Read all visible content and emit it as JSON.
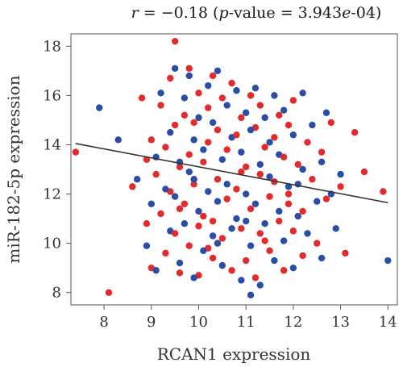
{
  "chart_data": {
    "type": "scatter",
    "title": {
      "r_symbol": "r",
      "r_value": " = −0.18 (",
      "p_symbol": "p",
      "p_label": "-value = 3.943",
      "p_e": "e",
      "p_exp": "-04)"
    },
    "xlabel": "RCAN1 expression",
    "ylabel": "miR-182-5p expression",
    "xlim": [
      7.3,
      14.2
    ],
    "ylim": [
      7.5,
      18.5
    ],
    "xticks": [
      8,
      9,
      10,
      11,
      12,
      13,
      14
    ],
    "yticks": [
      8,
      10,
      12,
      14,
      16,
      18
    ],
    "xtick_labels": [
      "8",
      "9",
      "10",
      "11",
      "12",
      "13",
      "14"
    ],
    "ytick_labels": [
      "8",
      "10",
      "12",
      "14",
      "16",
      "18"
    ],
    "grid": false,
    "legend": "none",
    "colors": {
      "red": "#e32b2e",
      "blue": "#2a4ea6",
      "line": "#333333"
    },
    "regression_line": {
      "x": [
        7.4,
        14.0
      ],
      "y": [
        14.05,
        11.65
      ]
    },
    "series": [
      {
        "color": "red",
        "points": [
          [
            7.4,
            13.7
          ],
          [
            8.1,
            8.0
          ],
          [
            8.6,
            12.3
          ],
          [
            8.8,
            15.9
          ],
          [
            8.9,
            13.4
          ],
          [
            8.9,
            10.8
          ],
          [
            9.0,
            14.2
          ],
          [
            9.0,
            9.0
          ],
          [
            9.1,
            12.8
          ],
          [
            9.2,
            15.6
          ],
          [
            9.2,
            11.2
          ],
          [
            9.3,
            13.9
          ],
          [
            9.3,
            9.6
          ],
          [
            9.4,
            16.7
          ],
          [
            9.4,
            12.1
          ],
          [
            9.5,
            18.2
          ],
          [
            9.5,
            14.8
          ],
          [
            9.5,
            10.4
          ],
          [
            9.6,
            13.1
          ],
          [
            9.6,
            8.8
          ],
          [
            9.7,
            15.2
          ],
          [
            9.7,
            11.6
          ],
          [
            9.8,
            17.1
          ],
          [
            9.8,
            13.6
          ],
          [
            9.8,
            9.9
          ],
          [
            9.9,
            14.9
          ],
          [
            9.9,
            12.4
          ],
          [
            10.0,
            16.1
          ],
          [
            10.0,
            10.7
          ],
          [
            10.0,
            8.7
          ],
          [
            10.1,
            13.3
          ],
          [
            10.1,
            11.1
          ],
          [
            10.2,
            15.5
          ],
          [
            10.2,
            14.1
          ],
          [
            10.3,
            16.8
          ],
          [
            10.3,
            9.4
          ],
          [
            10.4,
            12.6
          ],
          [
            10.4,
            14.6
          ],
          [
            10.5,
            10.2
          ],
          [
            10.5,
            15.9
          ],
          [
            10.6,
            13.8
          ],
          [
            10.6,
            11.8
          ],
          [
            10.7,
            8.9
          ],
          [
            10.7,
            16.5
          ],
          [
            10.8,
            12.2
          ],
          [
            10.8,
            14.4
          ],
          [
            10.9,
            10.6
          ],
          [
            10.9,
            15.1
          ],
          [
            11.0,
            13.1
          ],
          [
            11.0,
            9.3
          ],
          [
            11.1,
            16.0
          ],
          [
            11.1,
            11.4
          ],
          [
            11.2,
            14.7
          ],
          [
            11.2,
            8.6
          ],
          [
            11.3,
            12.8
          ],
          [
            11.3,
            15.6
          ],
          [
            11.4,
            10.1
          ],
          [
            11.4,
            13.9
          ],
          [
            11.5,
            11.9
          ],
          [
            11.5,
            9.7
          ],
          [
            11.6,
            14.3
          ],
          [
            11.6,
            12.5
          ],
          [
            11.7,
            15.2
          ],
          [
            11.7,
            10.9
          ],
          [
            11.8,
            13.5
          ],
          [
            11.8,
            8.9
          ],
          [
            11.9,
            12.0
          ],
          [
            11.9,
            14.8
          ],
          [
            12.0,
            10.5
          ],
          [
            12.0,
            15.8
          ],
          [
            12.1,
            13.2
          ],
          [
            12.2,
            11.3
          ],
          [
            12.2,
            9.5
          ],
          [
            12.3,
            14.1
          ],
          [
            12.4,
            12.6
          ],
          [
            12.5,
            10.0
          ],
          [
            12.6,
            13.7
          ],
          [
            12.7,
            11.8
          ],
          [
            12.8,
            14.9
          ],
          [
            13.0,
            12.3
          ],
          [
            13.1,
            9.6
          ],
          [
            13.3,
            14.5
          ],
          [
            13.5,
            12.9
          ],
          [
            13.9,
            12.1
          ],
          [
            9.6,
            11.4
          ],
          [
            10.3,
            10.9
          ],
          [
            10.9,
            12.9
          ],
          [
            11.3,
            10.4
          ],
          [
            10.2,
            9.8
          ],
          [
            11.9,
            11.6
          ]
        ]
      },
      {
        "color": "blue",
        "points": [
          [
            7.9,
            15.5
          ],
          [
            8.3,
            14.2
          ],
          [
            8.7,
            12.6
          ],
          [
            8.9,
            9.9
          ],
          [
            9.0,
            11.6
          ],
          [
            9.1,
            13.5
          ],
          [
            9.1,
            8.9
          ],
          [
            9.2,
            16.1
          ],
          [
            9.3,
            12.2
          ],
          [
            9.4,
            10.5
          ],
          [
            9.4,
            14.5
          ],
          [
            9.5,
            17.1
          ],
          [
            9.5,
            11.9
          ],
          [
            9.6,
            9.2
          ],
          [
            9.6,
            13.3
          ],
          [
            9.7,
            15.9
          ],
          [
            9.7,
            10.8
          ],
          [
            9.8,
            16.8
          ],
          [
            9.8,
            12.9
          ],
          [
            9.9,
            8.6
          ],
          [
            9.9,
            14.2
          ],
          [
            10.0,
            11.3
          ],
          [
            10.0,
            15.1
          ],
          [
            10.1,
            9.7
          ],
          [
            10.1,
            13.8
          ],
          [
            10.2,
            16.4
          ],
          [
            10.2,
            12.1
          ],
          [
            10.3,
            10.3
          ],
          [
            10.3,
            14.9
          ],
          [
            10.4,
            17.0
          ],
          [
            10.4,
            11.7
          ],
          [
            10.5,
            13.4
          ],
          [
            10.5,
            9.1
          ],
          [
            10.6,
            15.6
          ],
          [
            10.6,
            12.4
          ],
          [
            10.7,
            10.6
          ],
          [
            10.7,
            14.3
          ],
          [
            10.8,
            16.2
          ],
          [
            10.8,
            11.0
          ],
          [
            10.9,
            13.7
          ],
          [
            10.9,
            8.5
          ],
          [
            11.0,
            15.3
          ],
          [
            11.0,
            12.0
          ],
          [
            11.1,
            9.9
          ],
          [
            11.1,
            14.6
          ],
          [
            11.1,
            7.9
          ],
          [
            11.2,
            16.3
          ],
          [
            11.2,
            11.6
          ],
          [
            11.3,
            13.2
          ],
          [
            11.3,
            8.3
          ],
          [
            11.4,
            15.1
          ],
          [
            11.4,
            10.8
          ],
          [
            11.5,
            12.7
          ],
          [
            11.5,
            14.1
          ],
          [
            11.6,
            9.3
          ],
          [
            11.6,
            16.0
          ],
          [
            11.7,
            11.3
          ],
          [
            11.7,
            13.6
          ],
          [
            11.8,
            10.1
          ],
          [
            11.8,
            15.4
          ],
          [
            11.9,
            12.3
          ],
          [
            12.0,
            9.0
          ],
          [
            12.0,
            14.4
          ],
          [
            12.1,
            11.1
          ],
          [
            12.2,
            16.1
          ],
          [
            12.2,
            13.0
          ],
          [
            12.3,
            10.4
          ],
          [
            12.4,
            14.8
          ],
          [
            12.5,
            11.7
          ],
          [
            12.6,
            9.4
          ],
          [
            12.6,
            13.3
          ],
          [
            12.7,
            15.3
          ],
          [
            12.8,
            12.0
          ],
          [
            12.9,
            10.6
          ],
          [
            13.0,
            12.8
          ],
          [
            14.0,
            9.3
          ],
          [
            10.4,
            10.0
          ],
          [
            9.9,
            12.6
          ],
          [
            11.0,
            10.9
          ],
          [
            12.1,
            12.4
          ]
        ]
      }
    ]
  }
}
